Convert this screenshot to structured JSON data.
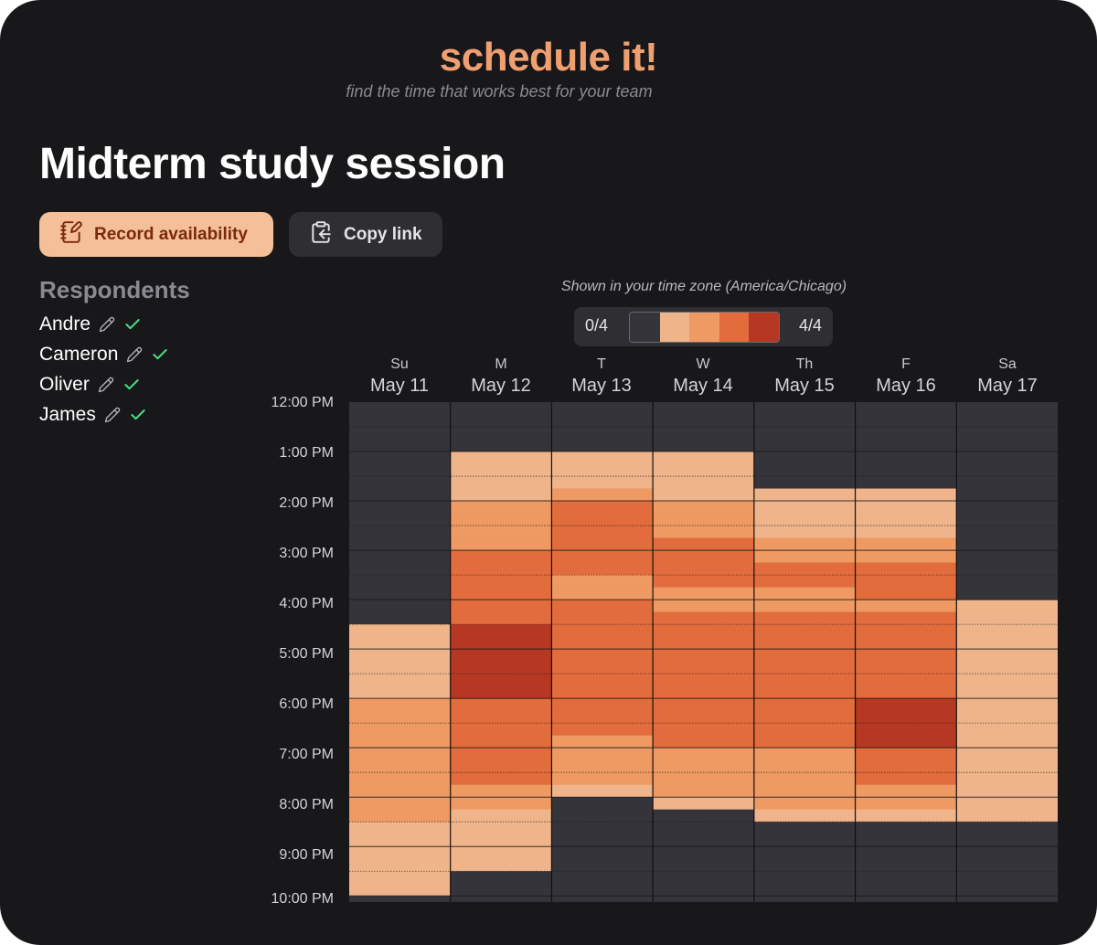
{
  "brand": "schedule it!",
  "tagline": "find the time that works best for your team",
  "event_title": "Midterm study session",
  "actions": {
    "record_label": "Record availability",
    "copy_label": "Copy link",
    "record_icon": "notebook-pen-icon",
    "copy_icon": "clipboard-copy-icon"
  },
  "respondents": {
    "heading": "Respondents",
    "people": [
      {
        "name": "Andre",
        "edit_icon": "pencil-icon",
        "status_icon": "check-icon"
      },
      {
        "name": "Cameron",
        "edit_icon": "pencil-icon",
        "status_icon": "check-icon"
      },
      {
        "name": "Oliver",
        "edit_icon": "pencil-icon",
        "status_icon": "check-icon"
      },
      {
        "name": "James",
        "edit_icon": "pencil-icon",
        "status_icon": "check-icon"
      }
    ]
  },
  "timezone_note": "Shown in your time zone (America/Chicago)",
  "legend": {
    "min_label": "0/4",
    "max_label": "4/4",
    "colors": [
      "#34343a",
      "#efb48a",
      "#ee9a62",
      "#e36c3c",
      "#b73822"
    ]
  },
  "days": [
    {
      "dow": "Su",
      "date": "May 11"
    },
    {
      "dow": "M",
      "date": "May 12"
    },
    {
      "dow": "T",
      "date": "May 13"
    },
    {
      "dow": "W",
      "date": "May 14"
    },
    {
      "dow": "Th",
      "date": "May 15"
    },
    {
      "dow": "F",
      "date": "May 16"
    },
    {
      "dow": "Sa",
      "date": "May 17"
    }
  ],
  "time_labels": [
    "12:00 PM",
    "1:00 PM",
    "2:00 PM",
    "3:00 PM",
    "4:00 PM",
    "5:00 PM",
    "6:00 PM",
    "7:00 PM",
    "8:00 PM",
    "9:00 PM",
    "10:00 PM"
  ],
  "chart_data": {
    "type": "heatmap",
    "start_time": "12:00 PM",
    "end_time": "10:00 PM",
    "slot_minutes": 15,
    "max_count": 4,
    "columns": [
      "May 11",
      "May 12",
      "May 13",
      "May 14",
      "May 15",
      "May 16",
      "May 17"
    ],
    "availability": [
      [
        0,
        0,
        0,
        0,
        0,
        0,
        0,
        0,
        0,
        0,
        0,
        0,
        0,
        0,
        0,
        0,
        0,
        0,
        1,
        1,
        1,
        1,
        1,
        1,
        2,
        2,
        2,
        2,
        2,
        2,
        2,
        2,
        2,
        2,
        1,
        1,
        1,
        1,
        1,
        1
      ],
      [
        0,
        0,
        0,
        0,
        1,
        1,
        1,
        1,
        2,
        2,
        2,
        2,
        3,
        3,
        3,
        3,
        3,
        3,
        4,
        4,
        4,
        4,
        4,
        4,
        3,
        3,
        3,
        3,
        3,
        3,
        3,
        2,
        2,
        1,
        1,
        1,
        1,
        1,
        0,
        0
      ],
      [
        0,
        0,
        0,
        0,
        1,
        1,
        1,
        2,
        3,
        3,
        3,
        3,
        3,
        3,
        2,
        2,
        3,
        3,
        3,
        3,
        3,
        3,
        3,
        3,
        3,
        3,
        3,
        2,
        2,
        2,
        2,
        1,
        0,
        0,
        0,
        0,
        0,
        0,
        0,
        0
      ],
      [
        0,
        0,
        0,
        0,
        1,
        1,
        1,
        1,
        2,
        2,
        2,
        3,
        3,
        3,
        3,
        2,
        2,
        3,
        3,
        3,
        3,
        3,
        3,
        3,
        3,
        3,
        3,
        3,
        2,
        2,
        2,
        2,
        1,
        0,
        0,
        0,
        0,
        0,
        0,
        0
      ],
      [
        0,
        0,
        0,
        0,
        0,
        0,
        0,
        1,
        1,
        1,
        1,
        2,
        2,
        3,
        3,
        2,
        2,
        3,
        3,
        3,
        3,
        3,
        3,
        3,
        3,
        3,
        3,
        3,
        2,
        2,
        2,
        2,
        2,
        1,
        0,
        0,
        0,
        0,
        0,
        0
      ],
      [
        0,
        0,
        0,
        0,
        0,
        0,
        0,
        1,
        1,
        1,
        1,
        2,
        2,
        3,
        3,
        3,
        2,
        3,
        3,
        3,
        3,
        3,
        3,
        3,
        4,
        4,
        4,
        4,
        3,
        3,
        3,
        2,
        2,
        1,
        0,
        0,
        0,
        0,
        0,
        0
      ],
      [
        0,
        0,
        0,
        0,
        0,
        0,
        0,
        0,
        0,
        0,
        0,
        0,
        0,
        0,
        0,
        0,
        1,
        1,
        1,
        1,
        1,
        1,
        1,
        1,
        1,
        1,
        1,
        1,
        1,
        1,
        1,
        1,
        1,
        1,
        0,
        0,
        0,
        0,
        0,
        0
      ]
    ]
  }
}
